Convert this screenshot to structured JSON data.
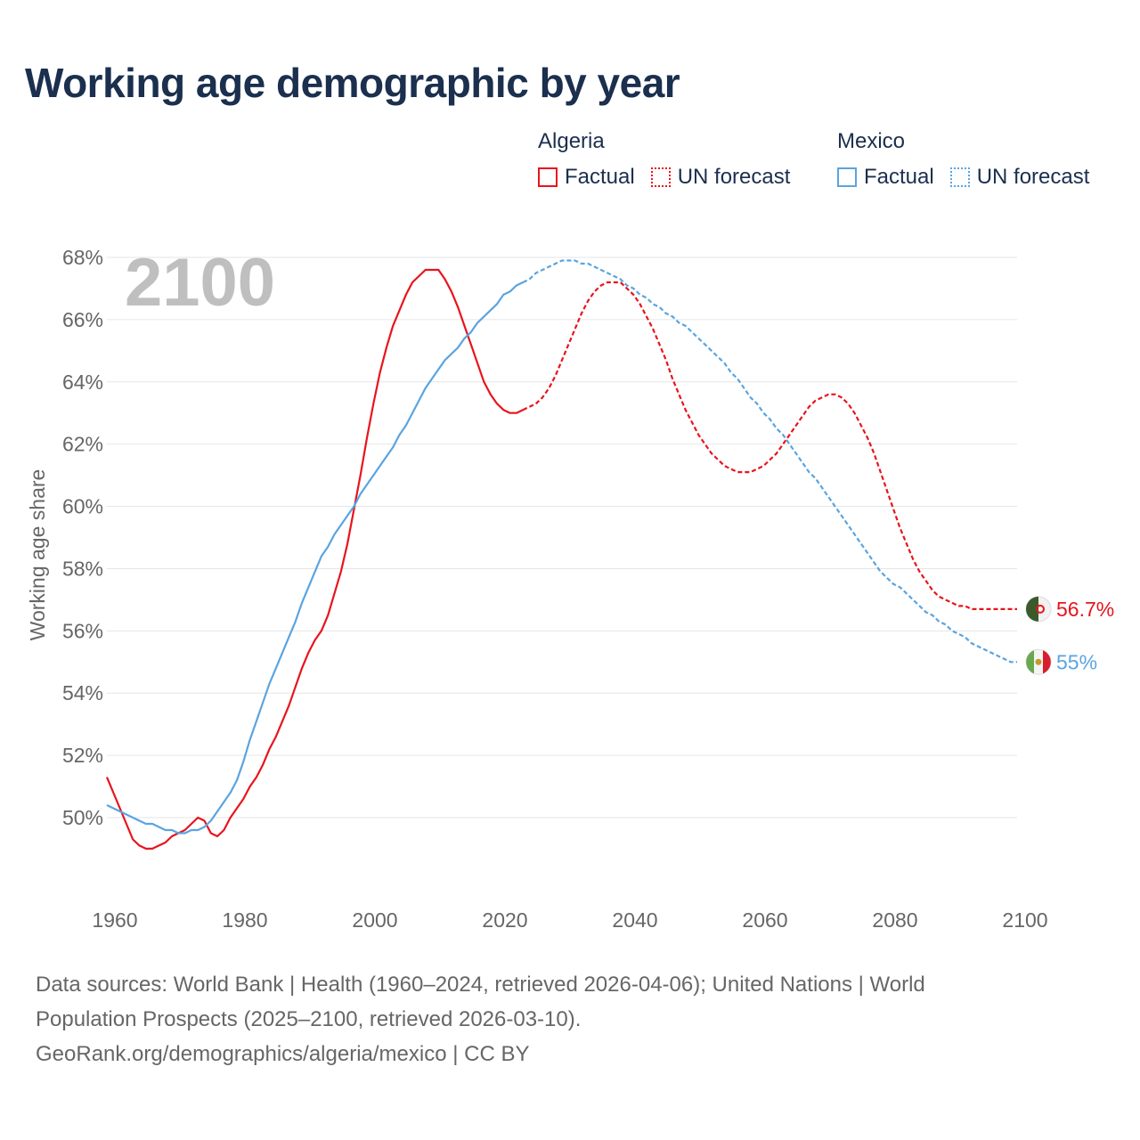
{
  "title": "Working age demographic by year",
  "legend": {
    "groups": [
      {
        "name": "Algeria",
        "factual_label": "Factual",
        "forecast_label": "UN forecast",
        "color": "#e8141c"
      },
      {
        "name": "Mexico",
        "factual_label": "Factual",
        "forecast_label": "UN forecast",
        "color": "#5aa4e0"
      }
    ]
  },
  "footer": {
    "line1": "Data sources: World Bank | Health (1960–2024, retrieved 2026-04-06); United Nations | World",
    "line2": "Population Prospects (2025–2100, retrieved 2026-03-10).",
    "line3": "GeoRank.org/demographics/algeria/mexico | CC BY"
  },
  "chart_data": {
    "type": "line",
    "year_watermark": "2100",
    "ylabel": "Working age share",
    "xlabel": "",
    "xlim": [
      1960,
      2100
    ],
    "ylim": [
      48,
      68
    ],
    "x_ticks": [
      1960,
      1980,
      2000,
      2020,
      2040,
      2060,
      2080,
      2100
    ],
    "y_ticks": [
      50,
      52,
      54,
      56,
      58,
      60,
      62,
      64,
      66,
      68
    ],
    "y_tick_labels": [
      "50%",
      "52%",
      "54%",
      "56%",
      "58%",
      "60%",
      "62%",
      "64%",
      "66%",
      "68%"
    ],
    "forecast_start": 2024,
    "series": [
      {
        "name": "Algeria",
        "color": "#e8141c",
        "end_label": "56.7%",
        "points": [
          [
            1960,
            51.3
          ],
          [
            1961,
            50.8
          ],
          [
            1962,
            50.3
          ],
          [
            1963,
            49.8
          ],
          [
            1964,
            49.3
          ],
          [
            1965,
            49.1
          ],
          [
            1966,
            49.0
          ],
          [
            1967,
            49.0
          ],
          [
            1968,
            49.1
          ],
          [
            1969,
            49.2
          ],
          [
            1970,
            49.4
          ],
          [
            1971,
            49.5
          ],
          [
            1972,
            49.6
          ],
          [
            1973,
            49.8
          ],
          [
            1974,
            50.0
          ],
          [
            1975,
            49.9
          ],
          [
            1976,
            49.5
          ],
          [
            1977,
            49.4
          ],
          [
            1978,
            49.6
          ],
          [
            1979,
            50.0
          ],
          [
            1980,
            50.3
          ],
          [
            1981,
            50.6
          ],
          [
            1982,
            51.0
          ],
          [
            1983,
            51.3
          ],
          [
            1984,
            51.7
          ],
          [
            1985,
            52.2
          ],
          [
            1986,
            52.6
          ],
          [
            1987,
            53.1
          ],
          [
            1988,
            53.6
          ],
          [
            1989,
            54.2
          ],
          [
            1990,
            54.8
          ],
          [
            1991,
            55.3
          ],
          [
            1992,
            55.7
          ],
          [
            1993,
            56.0
          ],
          [
            1994,
            56.5
          ],
          [
            1995,
            57.2
          ],
          [
            1996,
            57.9
          ],
          [
            1997,
            58.8
          ],
          [
            1998,
            59.9
          ],
          [
            1999,
            61.0
          ],
          [
            2000,
            62.2
          ],
          [
            2001,
            63.3
          ],
          [
            2002,
            64.3
          ],
          [
            2003,
            65.1
          ],
          [
            2004,
            65.8
          ],
          [
            2005,
            66.3
          ],
          [
            2006,
            66.8
          ],
          [
            2007,
            67.2
          ],
          [
            2008,
            67.4
          ],
          [
            2009,
            67.6
          ],
          [
            2010,
            67.6
          ],
          [
            2011,
            67.6
          ],
          [
            2012,
            67.3
          ],
          [
            2013,
            66.9
          ],
          [
            2014,
            66.4
          ],
          [
            2015,
            65.8
          ],
          [
            2016,
            65.2
          ],
          [
            2017,
            64.6
          ],
          [
            2018,
            64.0
          ],
          [
            2019,
            63.6
          ],
          [
            2020,
            63.3
          ],
          [
            2021,
            63.1
          ],
          [
            2022,
            63.0
          ],
          [
            2023,
            63.0
          ],
          [
            2024,
            63.1
          ],
          [
            2025,
            63.2
          ],
          [
            2026,
            63.3
          ],
          [
            2027,
            63.5
          ],
          [
            2028,
            63.8
          ],
          [
            2029,
            64.2
          ],
          [
            2030,
            64.7
          ],
          [
            2031,
            65.2
          ],
          [
            2032,
            65.7
          ],
          [
            2033,
            66.2
          ],
          [
            2034,
            66.6
          ],
          [
            2035,
            66.9
          ],
          [
            2036,
            67.1
          ],
          [
            2037,
            67.2
          ],
          [
            2038,
            67.2
          ],
          [
            2039,
            67.2
          ],
          [
            2040,
            67.0
          ],
          [
            2041,
            66.8
          ],
          [
            2042,
            66.5
          ],
          [
            2043,
            66.1
          ],
          [
            2044,
            65.7
          ],
          [
            2045,
            65.2
          ],
          [
            2046,
            64.7
          ],
          [
            2047,
            64.1
          ],
          [
            2048,
            63.6
          ],
          [
            2049,
            63.1
          ],
          [
            2050,
            62.7
          ],
          [
            2051,
            62.3
          ],
          [
            2052,
            62.0
          ],
          [
            2053,
            61.7
          ],
          [
            2054,
            61.5
          ],
          [
            2055,
            61.3
          ],
          [
            2056,
            61.2
          ],
          [
            2057,
            61.1
          ],
          [
            2058,
            61.1
          ],
          [
            2059,
            61.1
          ],
          [
            2060,
            61.2
          ],
          [
            2061,
            61.3
          ],
          [
            2062,
            61.5
          ],
          [
            2063,
            61.7
          ],
          [
            2064,
            62.0
          ],
          [
            2065,
            62.3
          ],
          [
            2066,
            62.6
          ],
          [
            2067,
            62.9
          ],
          [
            2068,
            63.2
          ],
          [
            2069,
            63.4
          ],
          [
            2070,
            63.5
          ],
          [
            2071,
            63.6
          ],
          [
            2072,
            63.6
          ],
          [
            2073,
            63.5
          ],
          [
            2074,
            63.3
          ],
          [
            2075,
            63.0
          ],
          [
            2076,
            62.6
          ],
          [
            2077,
            62.2
          ],
          [
            2078,
            61.7
          ],
          [
            2079,
            61.1
          ],
          [
            2080,
            60.5
          ],
          [
            2081,
            59.9
          ],
          [
            2082,
            59.3
          ],
          [
            2083,
            58.8
          ],
          [
            2084,
            58.3
          ],
          [
            2085,
            57.9
          ],
          [
            2086,
            57.6
          ],
          [
            2087,
            57.3
          ],
          [
            2088,
            57.1
          ],
          [
            2089,
            57.0
          ],
          [
            2090,
            56.9
          ],
          [
            2091,
            56.8
          ],
          [
            2092,
            56.8
          ],
          [
            2093,
            56.7
          ],
          [
            2094,
            56.7
          ],
          [
            2095,
            56.7
          ],
          [
            2096,
            56.7
          ],
          [
            2097,
            56.7
          ],
          [
            2098,
            56.7
          ],
          [
            2099,
            56.7
          ],
          [
            2100,
            56.7
          ]
        ]
      },
      {
        "name": "Mexico",
        "color": "#5aa4e0",
        "end_label": "55%",
        "points": [
          [
            1960,
            50.4
          ],
          [
            1961,
            50.3
          ],
          [
            1962,
            50.2
          ],
          [
            1963,
            50.1
          ],
          [
            1964,
            50.0
          ],
          [
            1965,
            49.9
          ],
          [
            1966,
            49.8
          ],
          [
            1967,
            49.8
          ],
          [
            1968,
            49.7
          ],
          [
            1969,
            49.6
          ],
          [
            1970,
            49.6
          ],
          [
            1971,
            49.5
          ],
          [
            1972,
            49.5
          ],
          [
            1973,
            49.6
          ],
          [
            1974,
            49.6
          ],
          [
            1975,
            49.7
          ],
          [
            1976,
            49.9
          ],
          [
            1977,
            50.2
          ],
          [
            1978,
            50.5
          ],
          [
            1979,
            50.8
          ],
          [
            1980,
            51.2
          ],
          [
            1981,
            51.8
          ],
          [
            1982,
            52.5
          ],
          [
            1983,
            53.1
          ],
          [
            1984,
            53.7
          ],
          [
            1985,
            54.3
          ],
          [
            1986,
            54.8
          ],
          [
            1987,
            55.3
          ],
          [
            1988,
            55.8
          ],
          [
            1989,
            56.3
          ],
          [
            1990,
            56.9
          ],
          [
            1991,
            57.4
          ],
          [
            1992,
            57.9
          ],
          [
            1993,
            58.4
          ],
          [
            1994,
            58.7
          ],
          [
            1995,
            59.1
          ],
          [
            1996,
            59.4
          ],
          [
            1997,
            59.7
          ],
          [
            1998,
            60.0
          ],
          [
            1999,
            60.4
          ],
          [
            2000,
            60.7
          ],
          [
            2001,
            61.0
          ],
          [
            2002,
            61.3
          ],
          [
            2003,
            61.6
          ],
          [
            2004,
            61.9
          ],
          [
            2005,
            62.3
          ],
          [
            2006,
            62.6
          ],
          [
            2007,
            63.0
          ],
          [
            2008,
            63.4
          ],
          [
            2009,
            63.8
          ],
          [
            2010,
            64.1
          ],
          [
            2011,
            64.4
          ],
          [
            2012,
            64.7
          ],
          [
            2013,
            64.9
          ],
          [
            2014,
            65.1
          ],
          [
            2015,
            65.4
          ],
          [
            2016,
            65.6
          ],
          [
            2017,
            65.9
          ],
          [
            2018,
            66.1
          ],
          [
            2019,
            66.3
          ],
          [
            2020,
            66.5
          ],
          [
            2021,
            66.8
          ],
          [
            2022,
            66.9
          ],
          [
            2023,
            67.1
          ],
          [
            2024,
            67.2
          ],
          [
            2025,
            67.3
          ],
          [
            2026,
            67.5
          ],
          [
            2027,
            67.6
          ],
          [
            2028,
            67.7
          ],
          [
            2029,
            67.8
          ],
          [
            2030,
            67.9
          ],
          [
            2031,
            67.9
          ],
          [
            2032,
            67.9
          ],
          [
            2033,
            67.8
          ],
          [
            2034,
            67.8
          ],
          [
            2035,
            67.7
          ],
          [
            2036,
            67.6
          ],
          [
            2037,
            67.5
          ],
          [
            2038,
            67.4
          ],
          [
            2039,
            67.3
          ],
          [
            2040,
            67.1
          ],
          [
            2041,
            67.0
          ],
          [
            2042,
            66.8
          ],
          [
            2043,
            66.7
          ],
          [
            2044,
            66.5
          ],
          [
            2045,
            66.4
          ],
          [
            2046,
            66.2
          ],
          [
            2047,
            66.1
          ],
          [
            2048,
            65.9
          ],
          [
            2049,
            65.8
          ],
          [
            2050,
            65.6
          ],
          [
            2051,
            65.4
          ],
          [
            2052,
            65.2
          ],
          [
            2053,
            65.0
          ],
          [
            2054,
            64.8
          ],
          [
            2055,
            64.6
          ],
          [
            2056,
            64.3
          ],
          [
            2057,
            64.1
          ],
          [
            2058,
            63.8
          ],
          [
            2059,
            63.5
          ],
          [
            2060,
            63.3
          ],
          [
            2061,
            63.0
          ],
          [
            2062,
            62.8
          ],
          [
            2063,
            62.5
          ],
          [
            2064,
            62.3
          ],
          [
            2065,
            62.0
          ],
          [
            2066,
            61.7
          ],
          [
            2067,
            61.4
          ],
          [
            2068,
            61.1
          ],
          [
            2069,
            60.9
          ],
          [
            2070,
            60.6
          ],
          [
            2071,
            60.3
          ],
          [
            2072,
            60.0
          ],
          [
            2073,
            59.7
          ],
          [
            2074,
            59.4
          ],
          [
            2075,
            59.1
          ],
          [
            2076,
            58.8
          ],
          [
            2077,
            58.5
          ],
          [
            2078,
            58.2
          ],
          [
            2079,
            57.9
          ],
          [
            2080,
            57.7
          ],
          [
            2081,
            57.5
          ],
          [
            2082,
            57.4
          ],
          [
            2083,
            57.2
          ],
          [
            2084,
            57.0
          ],
          [
            2085,
            56.8
          ],
          [
            2086,
            56.6
          ],
          [
            2087,
            56.5
          ],
          [
            2088,
            56.3
          ],
          [
            2089,
            56.2
          ],
          [
            2090,
            56.0
          ],
          [
            2091,
            55.9
          ],
          [
            2092,
            55.8
          ],
          [
            2093,
            55.6
          ],
          [
            2094,
            55.5
          ],
          [
            2095,
            55.4
          ],
          [
            2096,
            55.3
          ],
          [
            2097,
            55.2
          ],
          [
            2098,
            55.1
          ],
          [
            2099,
            55.0
          ],
          [
            2100,
            55.0
          ]
        ]
      }
    ]
  }
}
